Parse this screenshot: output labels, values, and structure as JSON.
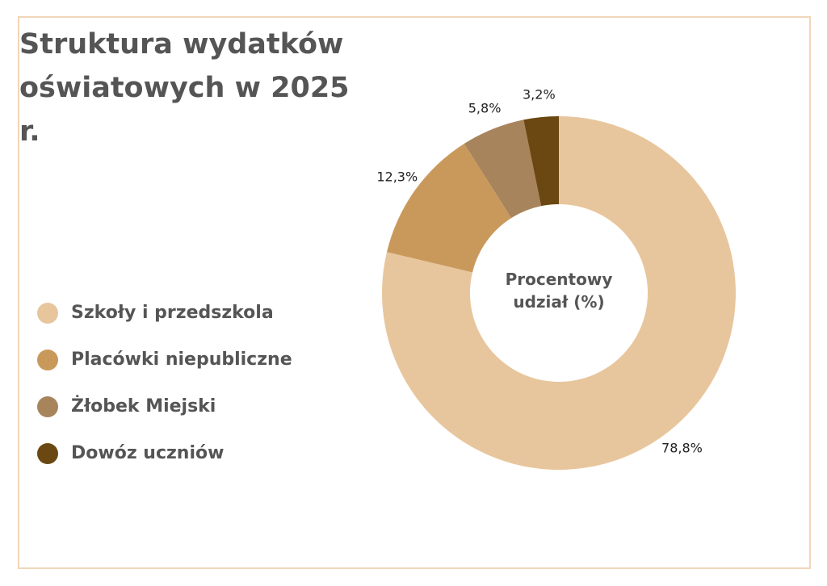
{
  "chart_data": {
    "type": "pie",
    "title": "Struktura wydatków oświatowych w 2025 r.",
    "center_label": "Procentowy udział (%)",
    "categories": [
      "Szkoły i przedszkola",
      "Placówki niepubliczne",
      "Żłobek Miejski",
      "Dowóz uczniów"
    ],
    "values": [
      78.8,
      12.3,
      5.8,
      3.2
    ],
    "value_labels": [
      "78,8%",
      "12,3%",
      "5,8%",
      "3,2%"
    ],
    "colors": [
      "#e8c69d",
      "#c9995c",
      "#a8845c",
      "#6b4712"
    ],
    "legend": "left"
  }
}
